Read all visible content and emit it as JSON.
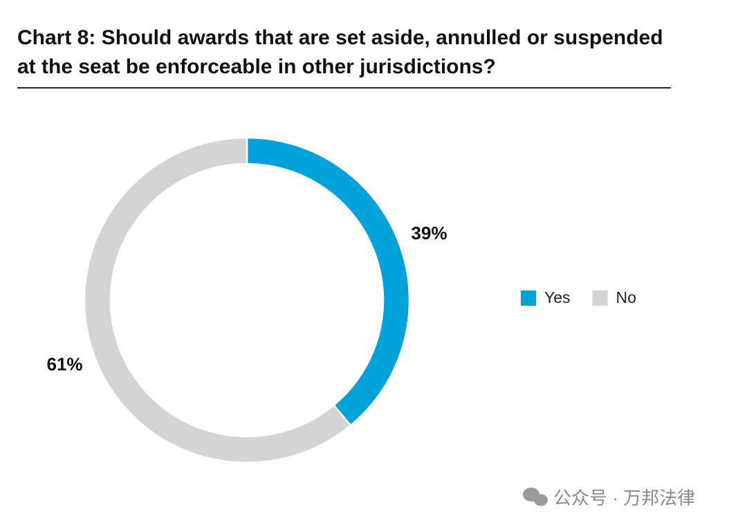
{
  "chart_data": {
    "type": "pie",
    "title": "Chart 8: Should awards that are set aside, annulled or suspended at the seat be enforceable in other jurisdictions?",
    "categories": [
      "Yes",
      "No"
    ],
    "values": [
      39,
      61
    ],
    "value_labels": [
      "39%",
      "61%"
    ],
    "colors": [
      "#00a3d9",
      "#d3d4d5"
    ],
    "donut": true,
    "legend": "right"
  },
  "watermark": "公众号 · 万邦法律"
}
